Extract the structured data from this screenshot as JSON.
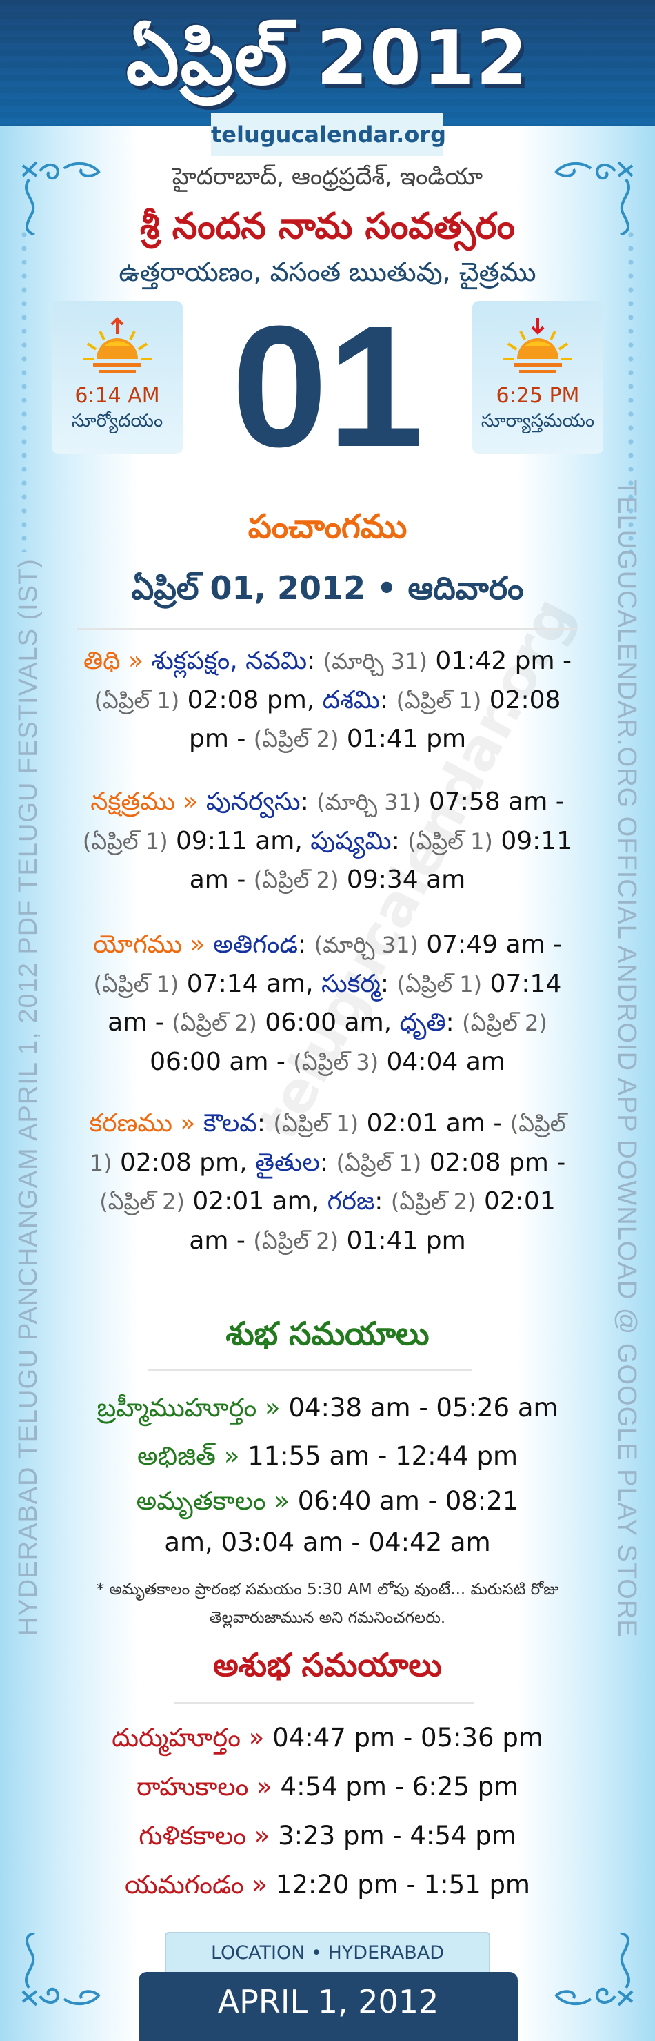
{
  "header": {
    "title": "ఏప్రిల్ 2012",
    "site": "telugucalendar.org"
  },
  "location_line": "హైదరాబాద్, ఆంధ్రప్రదేశ్, ఇండియా",
  "year_name": "శ్రీ నందన నామ సంవత్సరం",
  "ayanam_line": "ఉత్తరాయణం, వసంత ఋతువు, చైత్రము",
  "sunrise": {
    "time": "6:14 AM",
    "label": "సూర్యోదయం",
    "icon": "sunrise-icon"
  },
  "sunset": {
    "time": "6:25 PM",
    "label": "సూర్యాస్తమయం",
    "icon": "sunset-icon"
  },
  "day": "01",
  "panchangam_heading": "పంచాంగము",
  "date_heading": "ఏప్రిల్ 01, 2012 • ఆదివారం",
  "panchangam": [
    {
      "label": "తిథి »",
      "parts": [
        [
          "nm",
          "శుక్లపక్షం, నవమి"
        ],
        [
          "t",
          ": "
        ],
        [
          "dt",
          "(మార్చి 31)"
        ],
        [
          "t",
          " 01:42 pm - "
        ],
        [
          "dt",
          "(ఏప్రిల్ 1)"
        ],
        [
          "t",
          " 02:08 pm, "
        ],
        [
          "nm",
          "దశమి"
        ],
        [
          "t",
          ": "
        ],
        [
          "dt",
          "(ఏప్రిల్ 1)"
        ],
        [
          "t",
          " 02:08 pm - "
        ],
        [
          "dt",
          "(ఏప్రిల్ 2)"
        ],
        [
          "t",
          " 01:41 pm"
        ]
      ]
    },
    {
      "label": "నక్షత్రము »",
      "parts": [
        [
          "nm",
          "పునర్వసు"
        ],
        [
          "t",
          ": "
        ],
        [
          "dt",
          "(మార్చి 31)"
        ],
        [
          "t",
          " 07:58 am - "
        ],
        [
          "dt",
          "(ఏప్రిల్ 1)"
        ],
        [
          "t",
          " 09:11 am, "
        ],
        [
          "nm",
          "పుష్యమి"
        ],
        [
          "t",
          ": "
        ],
        [
          "dt",
          "(ఏప్రిల్ 1)"
        ],
        [
          "t",
          " 09:11 am - "
        ],
        [
          "dt",
          "(ఏప్రిల్ 2)"
        ],
        [
          "t",
          " 09:34 am"
        ]
      ]
    },
    {
      "label": "యోగము »",
      "parts": [
        [
          "nm",
          "అతిగండ"
        ],
        [
          "t",
          ": "
        ],
        [
          "dt",
          "(మార్చి 31)"
        ],
        [
          "t",
          " 07:49 am - "
        ],
        [
          "dt",
          "(ఏప్రిల్ 1)"
        ],
        [
          "t",
          " 07:14 am, "
        ],
        [
          "nm",
          "సుకర్మ"
        ],
        [
          "t",
          ": "
        ],
        [
          "dt",
          "(ఏప్రిల్ 1)"
        ],
        [
          "t",
          " 07:14 am - "
        ],
        [
          "dt",
          "(ఏప్రిల్ 2)"
        ],
        [
          "t",
          " 06:00 am, "
        ],
        [
          "nm",
          "ధృతి"
        ],
        [
          "t",
          ": "
        ],
        [
          "dt",
          "(ఏప్రిల్ 2)"
        ],
        [
          "t",
          " 06:00 am - "
        ],
        [
          "dt",
          "(ఏప్రిల్ 3)"
        ],
        [
          "t",
          " 04:04 am"
        ]
      ]
    },
    {
      "label": "కరణము »",
      "parts": [
        [
          "nm",
          "కౌలవ"
        ],
        [
          "t",
          ": "
        ],
        [
          "dt",
          "(ఏప్రిల్ 1)"
        ],
        [
          "t",
          " 02:01 am - "
        ],
        [
          "dt",
          "(ఏప్రిల్ 1)"
        ],
        [
          "t",
          " 02:08 pm, "
        ],
        [
          "nm",
          "తైతుల"
        ],
        [
          "t",
          ": "
        ],
        [
          "dt",
          "(ఏప్రిల్ 1)"
        ],
        [
          "t",
          " 02:08 pm - "
        ],
        [
          "dt",
          "(ఏప్రిల్ 2)"
        ],
        [
          "t",
          " 02:01 am, "
        ],
        [
          "nm",
          "గరజ"
        ],
        [
          "t",
          ": "
        ],
        [
          "dt",
          "(ఏప్రిల్ 2)"
        ],
        [
          "t",
          " 02:01 am - "
        ],
        [
          "dt",
          "(ఏప్రిల్ 2)"
        ],
        [
          "t",
          " 01:41 pm"
        ]
      ]
    }
  ],
  "shubha": {
    "heading": "శుభ సమయాలు",
    "rows": [
      {
        "label": "బ్రహ్మీముహూర్తం »",
        "value": " 04:38 am - 05:26 am"
      },
      {
        "label": "అభిజిత్ »",
        "value": " 11:55 am - 12:44 pm"
      },
      {
        "label": "అమృతకాలం »",
        "value": " 06:40 am - 08:21 am, 03:04 am - 04:42 am"
      }
    ],
    "note": "* అమృతకాలం ప్రారంభ సమయం 5:30 AM లోపు వుంటే... మరుసటి రోజు తెల్లవారుజామున అని గమనించగలరు."
  },
  "ashubha": {
    "heading": "అశుభ సమయాలు",
    "rows": [
      {
        "label": "దుర్ముహూర్తం »",
        "value": " 04:47 pm - 05:36 pm"
      },
      {
        "label": "రాహుకాలం »",
        "value": " 4:54 pm - 6:25 pm"
      },
      {
        "label": "గుళికకాలం »",
        "value": " 3:23 pm - 4:54 pm"
      },
      {
        "label": "యమగండం »",
        "value": " 12:20 pm - 1:51 pm"
      }
    ]
  },
  "side_left": "HYDERABAD TELUGU PANCHANGAM APRIL 1, 2012 PDF TELUGU FESTIVALS (IST)",
  "side_right": "TELUGUCALENDAR.ORG OFFICIAL ANDROID APP DOWNLOAD @ GOOGLE PLAY STORE",
  "watermark": "telugucalendar.org",
  "footer": {
    "location": "LOCATION • HYDERABAD",
    "date": "APRIL 1, 2012"
  },
  "colors": {
    "header": "#1f5a8e",
    "orange": "#f06a10",
    "blue_name": "#1432a0",
    "green": "#237a1e",
    "red": "#c0161c",
    "navy": "#21476e"
  }
}
